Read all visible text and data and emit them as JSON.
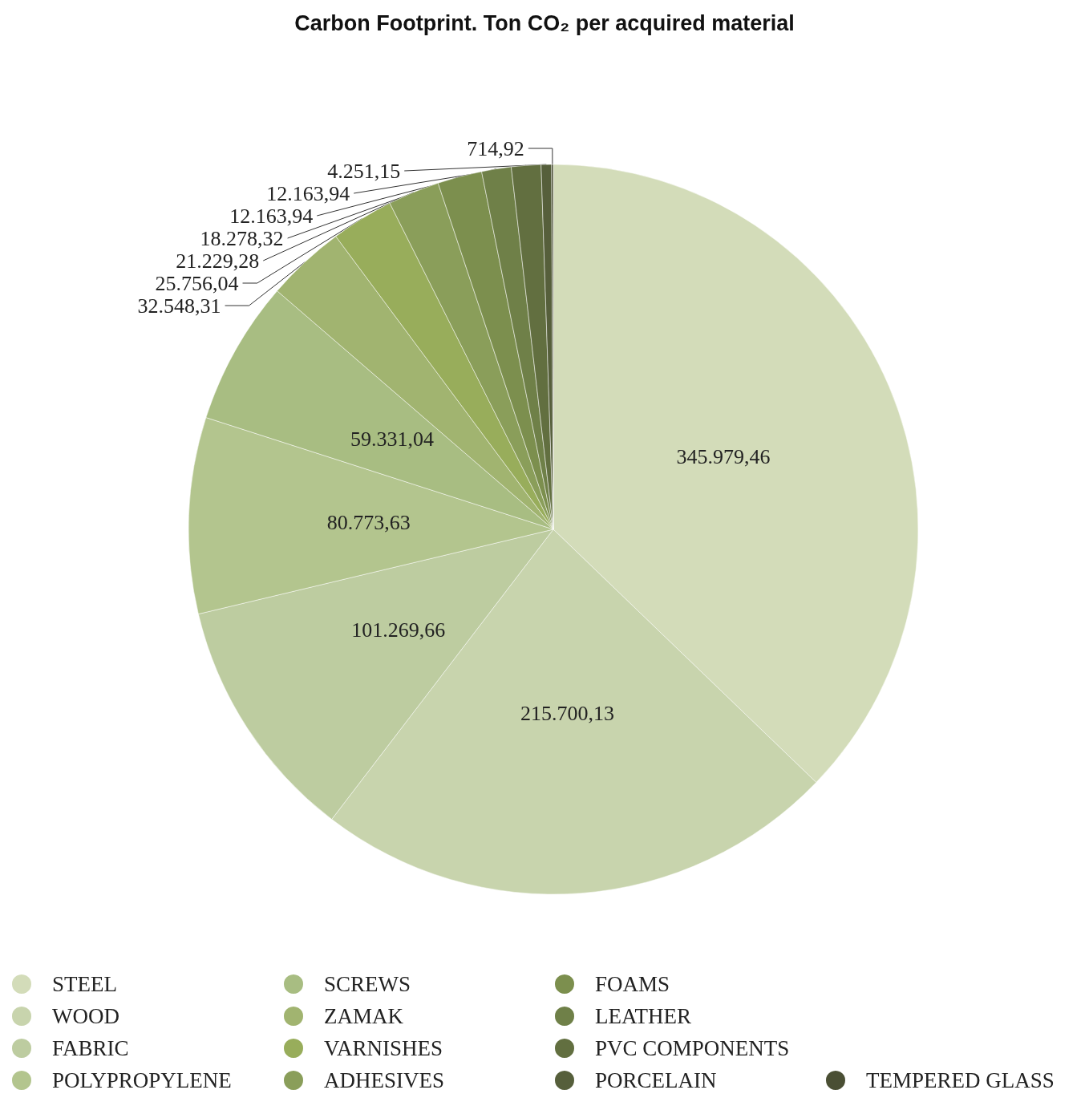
{
  "chart_data": {
    "type": "pie",
    "title": "Carbon Footprint. Ton CO₂ per acquired material",
    "categories": [
      "STEEL",
      "WOOD",
      "FABRIC",
      "POLYPROPYLENE",
      "SCREWS",
      "ZAMAK",
      "VARNISHES",
      "ADHESIVES",
      "FOAMS",
      "LEATHER",
      "PVC COMPONENTS",
      "PORCELAIN",
      "TEMPERED GLASS"
    ],
    "values": [
      345979.46,
      215700.13,
      101269.66,
      80773.63,
      59331.04,
      32548.31,
      25756.04,
      21229.28,
      18278.32,
      12163.94,
      12163.94,
      4251.15,
      714.92
    ],
    "value_labels": [
      "345.979,46",
      "215.700,13",
      "101.269,66",
      "80.773,63",
      "59.331,04",
      "32.548,31",
      "25.756,04",
      "21.229,28",
      "18.278,32",
      "12.163,94",
      "12.163,94",
      "4.251,15",
      "714,92"
    ],
    "colors": [
      "#d3dcb9",
      "#c8d4ad",
      "#bdcca0",
      "#b3c58e",
      "#a8bd82",
      "#a1b470",
      "#98ad5b",
      "#8a9e5a",
      "#7c8f4e",
      "#6f8048",
      "#626f40",
      "#565f3b",
      "#4a4f34"
    ],
    "legend": "bottom"
  }
}
